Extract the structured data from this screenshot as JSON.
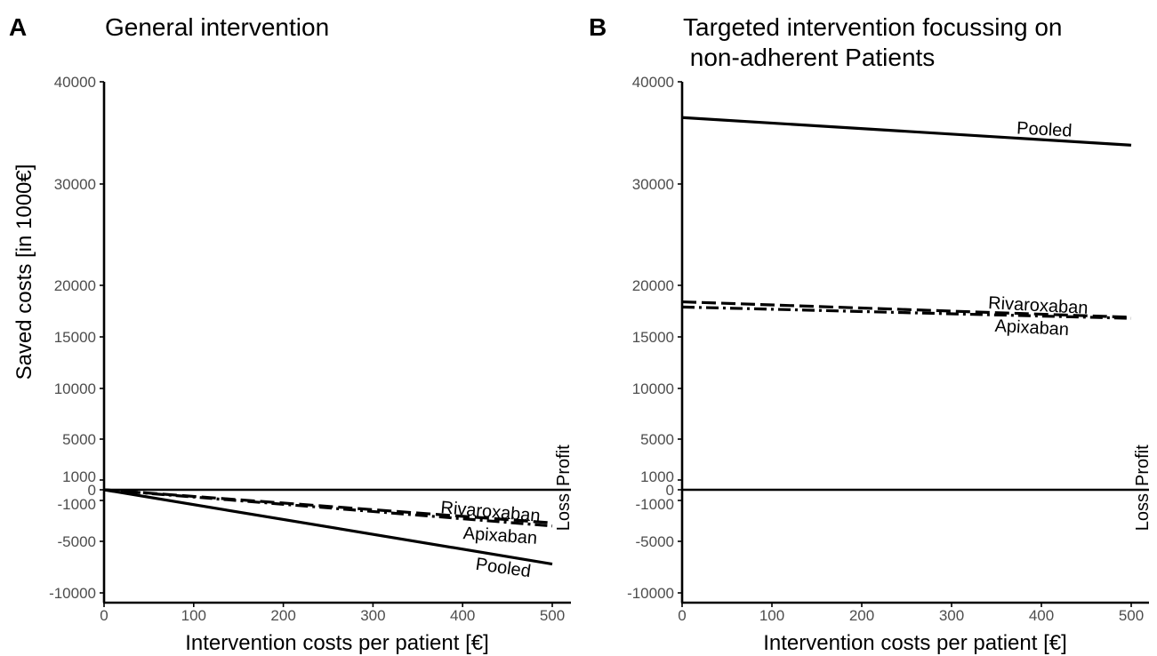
{
  "figure": {
    "shared_ylabel": "Saved costs [in 1000€]",
    "profit_label": "Profit",
    "loss_label": "Loss"
  },
  "chart_data": [
    {
      "type": "line",
      "panel": "A",
      "title": "General intervention",
      "xlabel": "Intervention costs per patient [€]",
      "ylabel": "Saved costs [in 1000€]",
      "xlim": [
        0,
        520
      ],
      "ylim": [
        -11000,
        40000
      ],
      "y_scale": "non-linear (expanded near zero)",
      "x_ticks": [
        0,
        100,
        200,
        300,
        400,
        500
      ],
      "y_ticks": [
        -10000,
        -5000,
        -1000,
        0,
        1000,
        5000,
        10000,
        15000,
        20000,
        30000,
        40000
      ],
      "zero_line": true,
      "grid": false,
      "series": [
        {
          "name": "Pooled",
          "style": "solid",
          "x": [
            0,
            500
          ],
          "values": [
            0,
            -7200
          ]
        },
        {
          "name": "Rivaroxaban",
          "style": "dotdash",
          "x": [
            0,
            500
          ],
          "values": [
            0,
            -3500
          ]
        },
        {
          "name": "Apixaban",
          "style": "dashed",
          "x": [
            0,
            500
          ],
          "values": [
            0,
            -3200
          ]
        }
      ]
    },
    {
      "type": "line",
      "panel": "B",
      "title": "Targeted intervention focussing on\n non-adherent Patients",
      "xlabel": "Intervention costs per patient [€]",
      "ylabel": "",
      "xlim": [
        0,
        520
      ],
      "ylim": [
        -11000,
        40000
      ],
      "y_scale": "non-linear (expanded near zero)",
      "x_ticks": [
        0,
        100,
        200,
        300,
        400,
        500
      ],
      "y_ticks": [
        -10000,
        -5000,
        -1000,
        0,
        1000,
        5000,
        10000,
        15000,
        20000,
        30000,
        40000
      ],
      "zero_line": true,
      "grid": false,
      "series": [
        {
          "name": "Pooled",
          "style": "solid",
          "x": [
            0,
            500
          ],
          "values": [
            36500,
            33800
          ]
        },
        {
          "name": "Rivaroxaban",
          "style": "dotdash",
          "x": [
            0,
            500
          ],
          "values": [
            17900,
            16800
          ]
        },
        {
          "name": "Apixaban",
          "style": "dashed",
          "x": [
            0,
            500
          ],
          "values": [
            18400,
            16900
          ]
        }
      ]
    }
  ]
}
